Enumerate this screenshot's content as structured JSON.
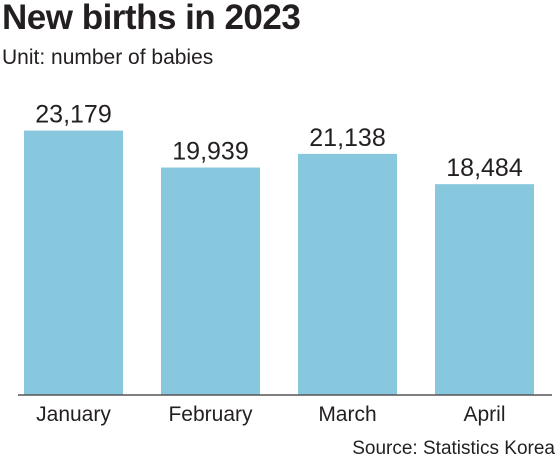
{
  "title": "New births in 2023",
  "subtitle": "Unit: number of babies",
  "source": "Source: Statistics Korea",
  "colors": {
    "bar": "#88c8de",
    "axis": "#555555",
    "text": "#231f20"
  },
  "chart_data": {
    "type": "bar",
    "categories": [
      "January",
      "February",
      "March",
      "April"
    ],
    "values": [
      23179,
      19939,
      21138,
      18484
    ],
    "value_labels": [
      "23,179",
      "19,939",
      "21,138",
      "18,484"
    ],
    "title": "New births in 2023",
    "xlabel": "",
    "ylabel": "",
    "ylim": [
      0,
      27000
    ],
    "grid": false,
    "legend": "none"
  }
}
